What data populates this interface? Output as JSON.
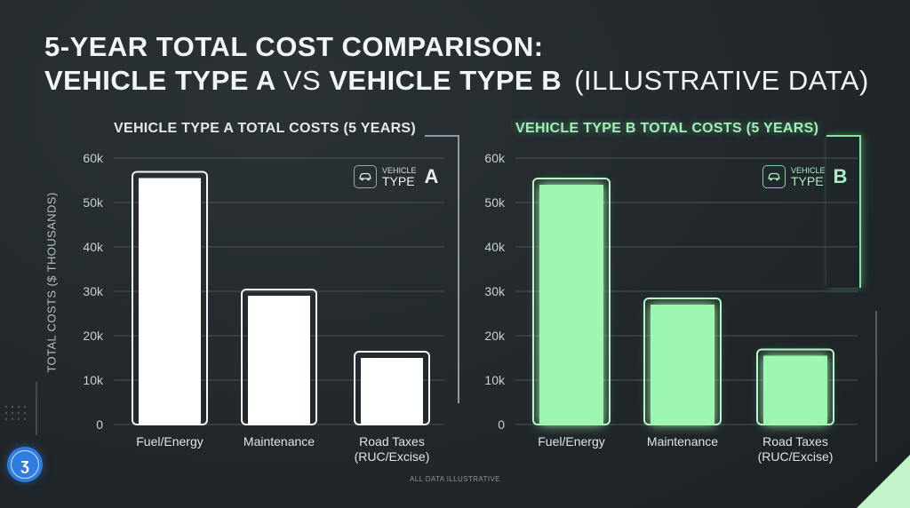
{
  "title": {
    "line1": "5-YEAR TOTAL COST COMPARISON:",
    "line2_a": "VEHICLE TYPE A",
    "line2_vs": "VS",
    "line2_b": "VEHICLE TYPE B",
    "line2_note": "(ILLUSTRATIVE DATA)"
  },
  "footnote": "ALL DATA ILLUSTRATIVE",
  "badges": {
    "a": {
      "small": "VEHICLE",
      "big": "TYPE",
      "letter": "A",
      "icon": "car-icon"
    },
    "b": {
      "small": "VEHICLE",
      "big": "TYPE",
      "letter": "B",
      "icon": "car-icon"
    }
  },
  "colors": {
    "bar_a": "#ffffff",
    "bar_b": "#9ef7b0",
    "accent_green": "#7de8a0",
    "grid": "#4a5358",
    "text": "#e8ecee"
  },
  "chart_data": [
    {
      "type": "bar",
      "title": "VEHICLE TYPE A TOTAL COSTS (5 YEARS)",
      "ylabel": "TOTAL COSTS ($ THOUSANDS)",
      "xlabel": "",
      "ylim": [
        0,
        60000
      ],
      "yticks": [
        {
          "value": 0,
          "label": "0"
        },
        {
          "value": 10000,
          "label": "10k"
        },
        {
          "value": 20000,
          "label": "20k"
        },
        {
          "value": 30000,
          "label": "30k"
        },
        {
          "value": 40000,
          "label": "40k"
        },
        {
          "value": 50000,
          "label": "50k"
        },
        {
          "value": 60000,
          "label": "60k"
        }
      ],
      "categories": [
        [
          "Fuel/Energy"
        ],
        [
          "Maintenance"
        ],
        [
          "Road Taxes",
          "(RUC/Excise)"
        ]
      ],
      "values": [
        55500,
        29000,
        15000
      ],
      "grid": true
    },
    {
      "type": "bar",
      "title": "VEHICLE TYPE B TOTAL COSTS (5 YEARS)",
      "ylabel": "",
      "xlabel": "",
      "ylim": [
        0,
        60000
      ],
      "yticks": [
        {
          "value": 0,
          "label": "0"
        },
        {
          "value": 10000,
          "label": "10k"
        },
        {
          "value": 20000,
          "label": "20k"
        },
        {
          "value": 30000,
          "label": "30k"
        },
        {
          "value": 40000,
          "label": "40k"
        },
        {
          "value": 50000,
          "label": "50k"
        },
        {
          "value": 60000,
          "label": "60k"
        }
      ],
      "categories": [
        [
          "Fuel/Energy"
        ],
        [
          "Maintenance"
        ],
        [
          "Road Taxes",
          "(RUC/Excise)"
        ]
      ],
      "values": [
        54000,
        27000,
        15500
      ],
      "grid": true
    }
  ]
}
